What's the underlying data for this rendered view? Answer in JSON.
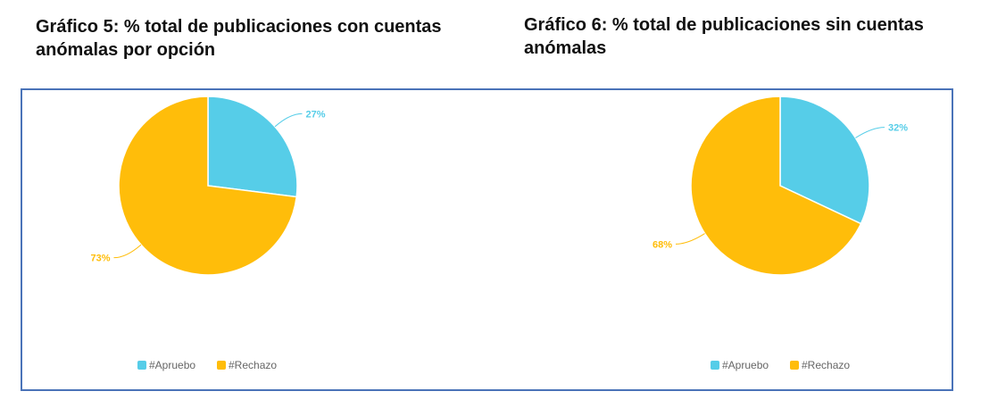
{
  "titles": {
    "chart5": "Gráfico 5: % total de publicaciones con cuentas anómalas por opción",
    "chart6": "Gráfico 6: % total de publicaciones sin cuentas anómalas"
  },
  "colors": {
    "apruebo": "#56cde8",
    "rechazo": "#ffbd0a",
    "frame": "#4a73b8"
  },
  "chart_data": [
    {
      "type": "pie",
      "title": "Gráfico 5: % total de publicaciones con cuentas anómalas por opción",
      "categories": [
        "#Apruebo",
        "#Rechazo"
      ],
      "values": [
        27,
        73
      ],
      "labels": [
        "27%",
        "73%"
      ],
      "legend_position": "bottom"
    },
    {
      "type": "pie",
      "title": "Gráfico 6: % total de publicaciones sin cuentas anómalas",
      "categories": [
        "#Apruebo",
        "#Rechazo"
      ],
      "values": [
        32,
        68
      ],
      "labels": [
        "32%",
        "68%"
      ],
      "legend_position": "bottom"
    }
  ]
}
